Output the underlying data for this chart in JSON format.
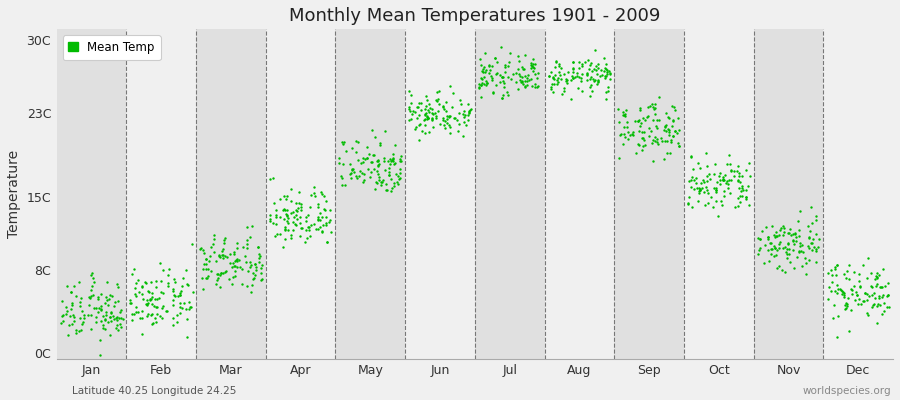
{
  "title": "Monthly Mean Temperatures 1901 - 2009",
  "ylabel": "Temperature",
  "xlabel_bottom_left": "Latitude 40.25 Longitude 24.25",
  "xlabel_bottom_right": "worldspecies.org",
  "legend_label": "Mean Temp",
  "ytick_labels": [
    "0C",
    "8C",
    "15C",
    "23C",
    "30C"
  ],
  "ytick_values": [
    0,
    8,
    15,
    23,
    30
  ],
  "ylim": [
    -0.5,
    31
  ],
  "months": [
    "Jan",
    "Feb",
    "Mar",
    "Apr",
    "May",
    "Jun",
    "Jul",
    "Aug",
    "Sep",
    "Oct",
    "Nov",
    "Dec"
  ],
  "dot_color": "#00bb00",
  "dot_size": 3,
  "background_color": "#f0f0f0",
  "band_color_dark": "#e0e0e0",
  "band_color_light": "#f0f0f0",
  "mean_temps": [
    4.0,
    5.0,
    8.5,
    13.0,
    18.0,
    23.0,
    26.5,
    26.5,
    21.5,
    16.0,
    10.5,
    6.0
  ],
  "temp_spreads": [
    2.0,
    2.0,
    2.0,
    2.0,
    2.0,
    1.5,
    1.2,
    1.2,
    1.8,
    2.0,
    2.0,
    2.0
  ],
  "n_points": 109,
  "seed": 12345
}
